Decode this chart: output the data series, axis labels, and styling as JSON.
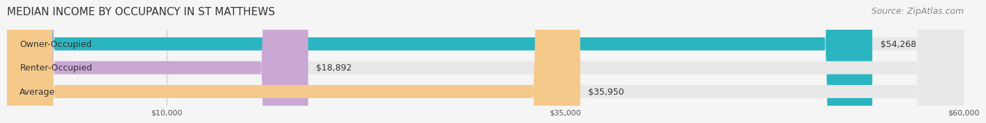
{
  "title": "MEDIAN INCOME BY OCCUPANCY IN ST MATTHEWS",
  "source": "Source: ZipAtlas.com",
  "categories": [
    "Owner-Occupied",
    "Renter-Occupied",
    "Average"
  ],
  "values": [
    54268,
    18892,
    35950
  ],
  "bar_colors": [
    "#2ab5c0",
    "#c9a8d4",
    "#f5c98a"
  ],
  "bar_labels": [
    "$54,268",
    "$18,892",
    "$35,950"
  ],
  "xlim": [
    0,
    60000
  ],
  "xticks": [
    10000,
    35000,
    60000
  ],
  "xtick_labels": [
    "$10,000",
    "$35,000",
    "$60,000"
  ],
  "background_color": "#f5f5f5",
  "bar_background_color": "#e8e8e8",
  "title_fontsize": 11,
  "source_fontsize": 9,
  "label_fontsize": 9,
  "bar_height": 0.55
}
